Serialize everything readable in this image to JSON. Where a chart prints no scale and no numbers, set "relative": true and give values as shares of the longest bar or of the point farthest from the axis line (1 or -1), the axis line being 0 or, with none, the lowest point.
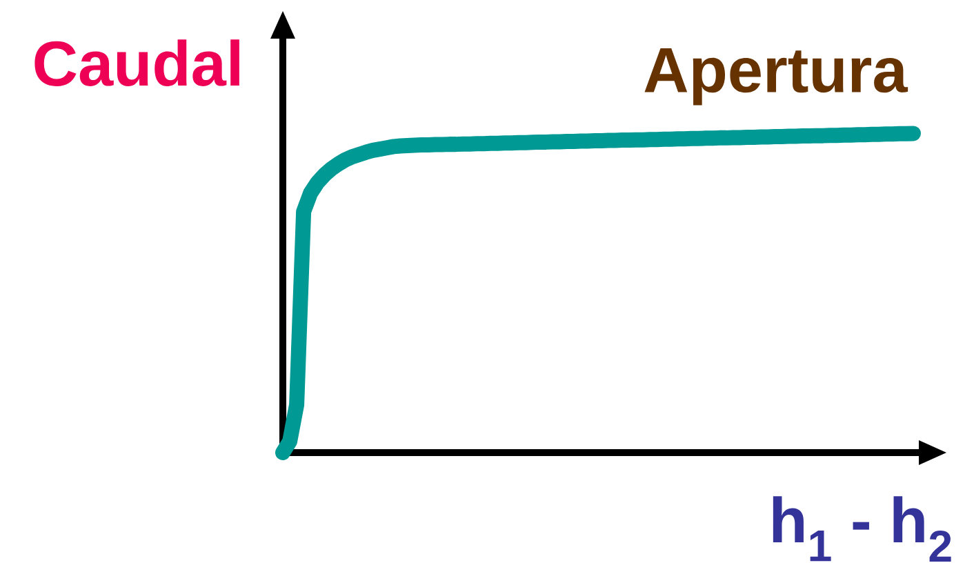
{
  "chart_data": {
    "type": "line",
    "relative": true,
    "ylabel": "Caudal",
    "xlabel": "h$_{1}$ - h$_{2}$",
    "categories": [
      null,
      null,
      null,
      null,
      null,
      null,
      null,
      null,
      null,
      null,
      null,
      null,
      null,
      null,
      null,
      null,
      null,
      null,
      null,
      null,
      null,
      null,
      null,
      null,
      null,
      null,
      null,
      null,
      null,
      null,
      null,
      null,
      null,
      null,
      null,
      null,
      null,
      null,
      null,
      null,
      null,
      null,
      null,
      null,
      null,
      null,
      null,
      null,
      null,
      null,
      null,
      null,
      null,
      null,
      null,
      null,
      null,
      null,
      null,
      null,
      null,
      null,
      null,
      null,
      null,
      null,
      null,
      null,
      null,
      null,
      null,
      null,
      null,
      null,
      null,
      null,
      null,
      null,
      null,
      null,
      null,
      null,
      null,
      null,
      null,
      null,
      null,
      null,
      null,
      null,
      null,
      null
    ],
    "series": [
      {
        "name": "Apertura",
        "color": "#009994",
        "values": [
          0,
          0.035,
          0.15,
          0.755,
          0.813,
          0.846,
          0.87,
          0.889,
          0.904,
          0.917,
          0.927,
          0.934,
          0.941,
          0.947,
          0.951,
          0.955,
          0.959,
          0.961,
          0.962,
          0.963,
          0.964,
          0.964,
          0.965,
          0.965,
          0.966,
          0.966,
          0.967,
          0.967,
          0.968,
          0.968,
          0.969,
          0.969,
          0.97,
          0.97,
          0.971,
          0.971,
          0.972,
          0.973,
          0.973,
          0.974,
          0.974,
          0.975,
          0.975,
          0.976,
          0.976,
          0.977,
          0.977,
          0.978,
          0.978,
          0.979,
          0.979,
          0.98,
          0.98,
          0.981,
          0.981,
          0.982,
          0.982,
          0.983,
          0.983,
          0.984,
          0.984,
          0.985,
          0.985,
          0.986,
          0.986,
          0.987,
          0.987,
          0.988,
          0.988,
          0.989,
          0.989,
          0.99,
          0.99,
          0.991,
          0.991,
          0.992,
          0.992,
          0.993,
          0.993,
          0.994,
          0.994,
          0.995,
          0.995,
          0.996,
          0.996,
          0.997,
          0.997,
          0.998,
          0.998,
          0.999,
          0.999,
          1
        ]
      }
    ]
  }
}
